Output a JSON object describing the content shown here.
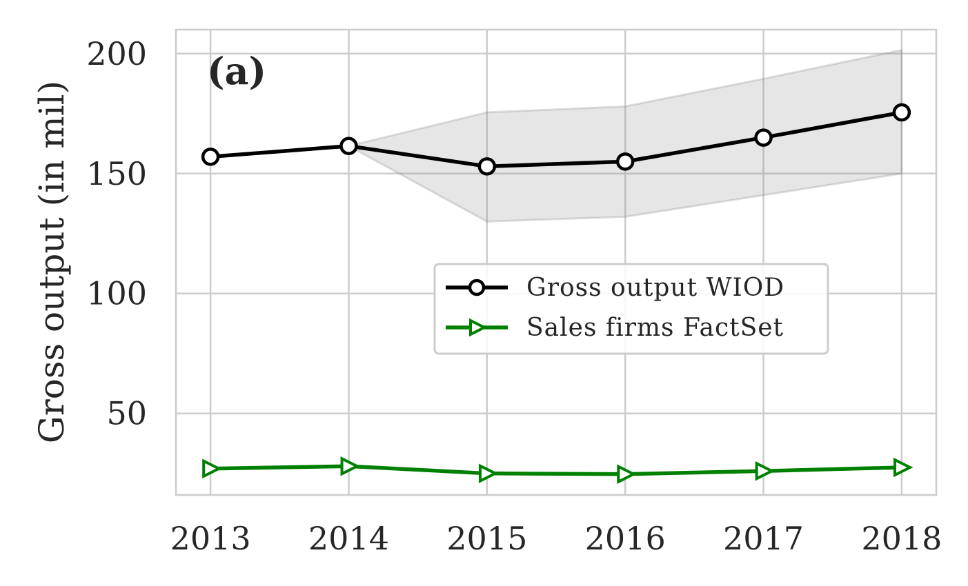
{
  "chart_data": {
    "type": "line",
    "title": "",
    "xlabel": "",
    "ylabel": "Gross output (in mil)",
    "panel_label": "(a)",
    "x": [
      2013,
      2014,
      2015,
      2016,
      2017,
      2018
    ],
    "x_tick_labels": [
      "2013",
      "2014",
      "2015",
      "2016",
      "2017",
      "2018"
    ],
    "y_ticks": [
      50,
      100,
      150,
      200
    ],
    "y_tick_labels": [
      "50",
      "100",
      "150",
      "200"
    ],
    "xlim": [
      2012.75,
      2018.25
    ],
    "ylim": [
      16,
      210
    ],
    "grid": true,
    "legend_position": "center-right",
    "series": [
      {
        "name": "Gross output WIOD",
        "values": [
          157,
          161.5,
          153,
          155,
          165,
          175.5
        ],
        "color": "#000000",
        "marker": "circle-open"
      },
      {
        "name": "Sales firms FactSet",
        "values": [
          27,
          28,
          25,
          24.7,
          26,
          27.5
        ],
        "color": "#008000",
        "marker": "triangle-right-open"
      }
    ],
    "band": {
      "x": [
        2014,
        2015,
        2016,
        2017,
        2018
      ],
      "lower": [
        161.5,
        130,
        132,
        141,
        150
      ],
      "upper": [
        161.5,
        175.5,
        178,
        189.5,
        201.5
      ],
      "color": "#808080"
    }
  }
}
